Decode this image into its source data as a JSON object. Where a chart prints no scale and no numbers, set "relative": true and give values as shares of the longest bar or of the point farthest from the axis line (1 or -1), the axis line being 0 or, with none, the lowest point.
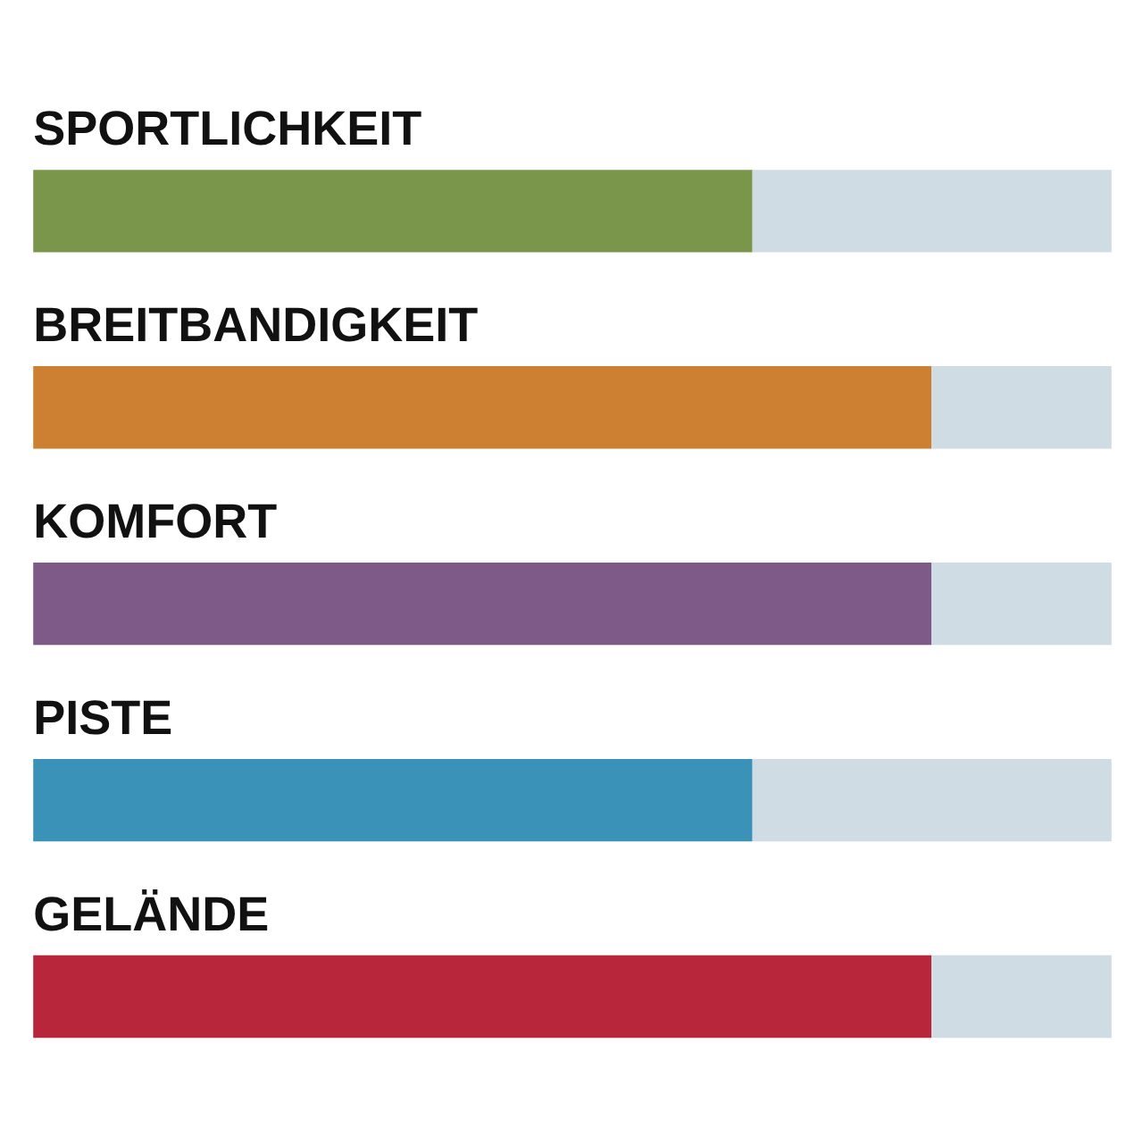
{
  "chart_data": {
    "type": "bar",
    "orientation": "horizontal",
    "stacked": true,
    "relative": true,
    "grid": false,
    "categories": [
      "SPORTLICHKEIT",
      "BREITBANDIGKEIT",
      "KOMFORT",
      "PISTE",
      "GELÄNDE"
    ],
    "series": [
      {
        "colors": [
          "#7a964a",
          "#cd7f32",
          "#7d5a87",
          "#3a92b8",
          "#b8263c"
        ],
        "values": [
          0.667,
          0.833,
          0.833,
          0.667,
          0.833
        ]
      },
      {
        "color": "#cfdce4",
        "values": [
          0.333,
          0.167,
          0.167,
          0.333,
          0.167
        ]
      }
    ]
  }
}
